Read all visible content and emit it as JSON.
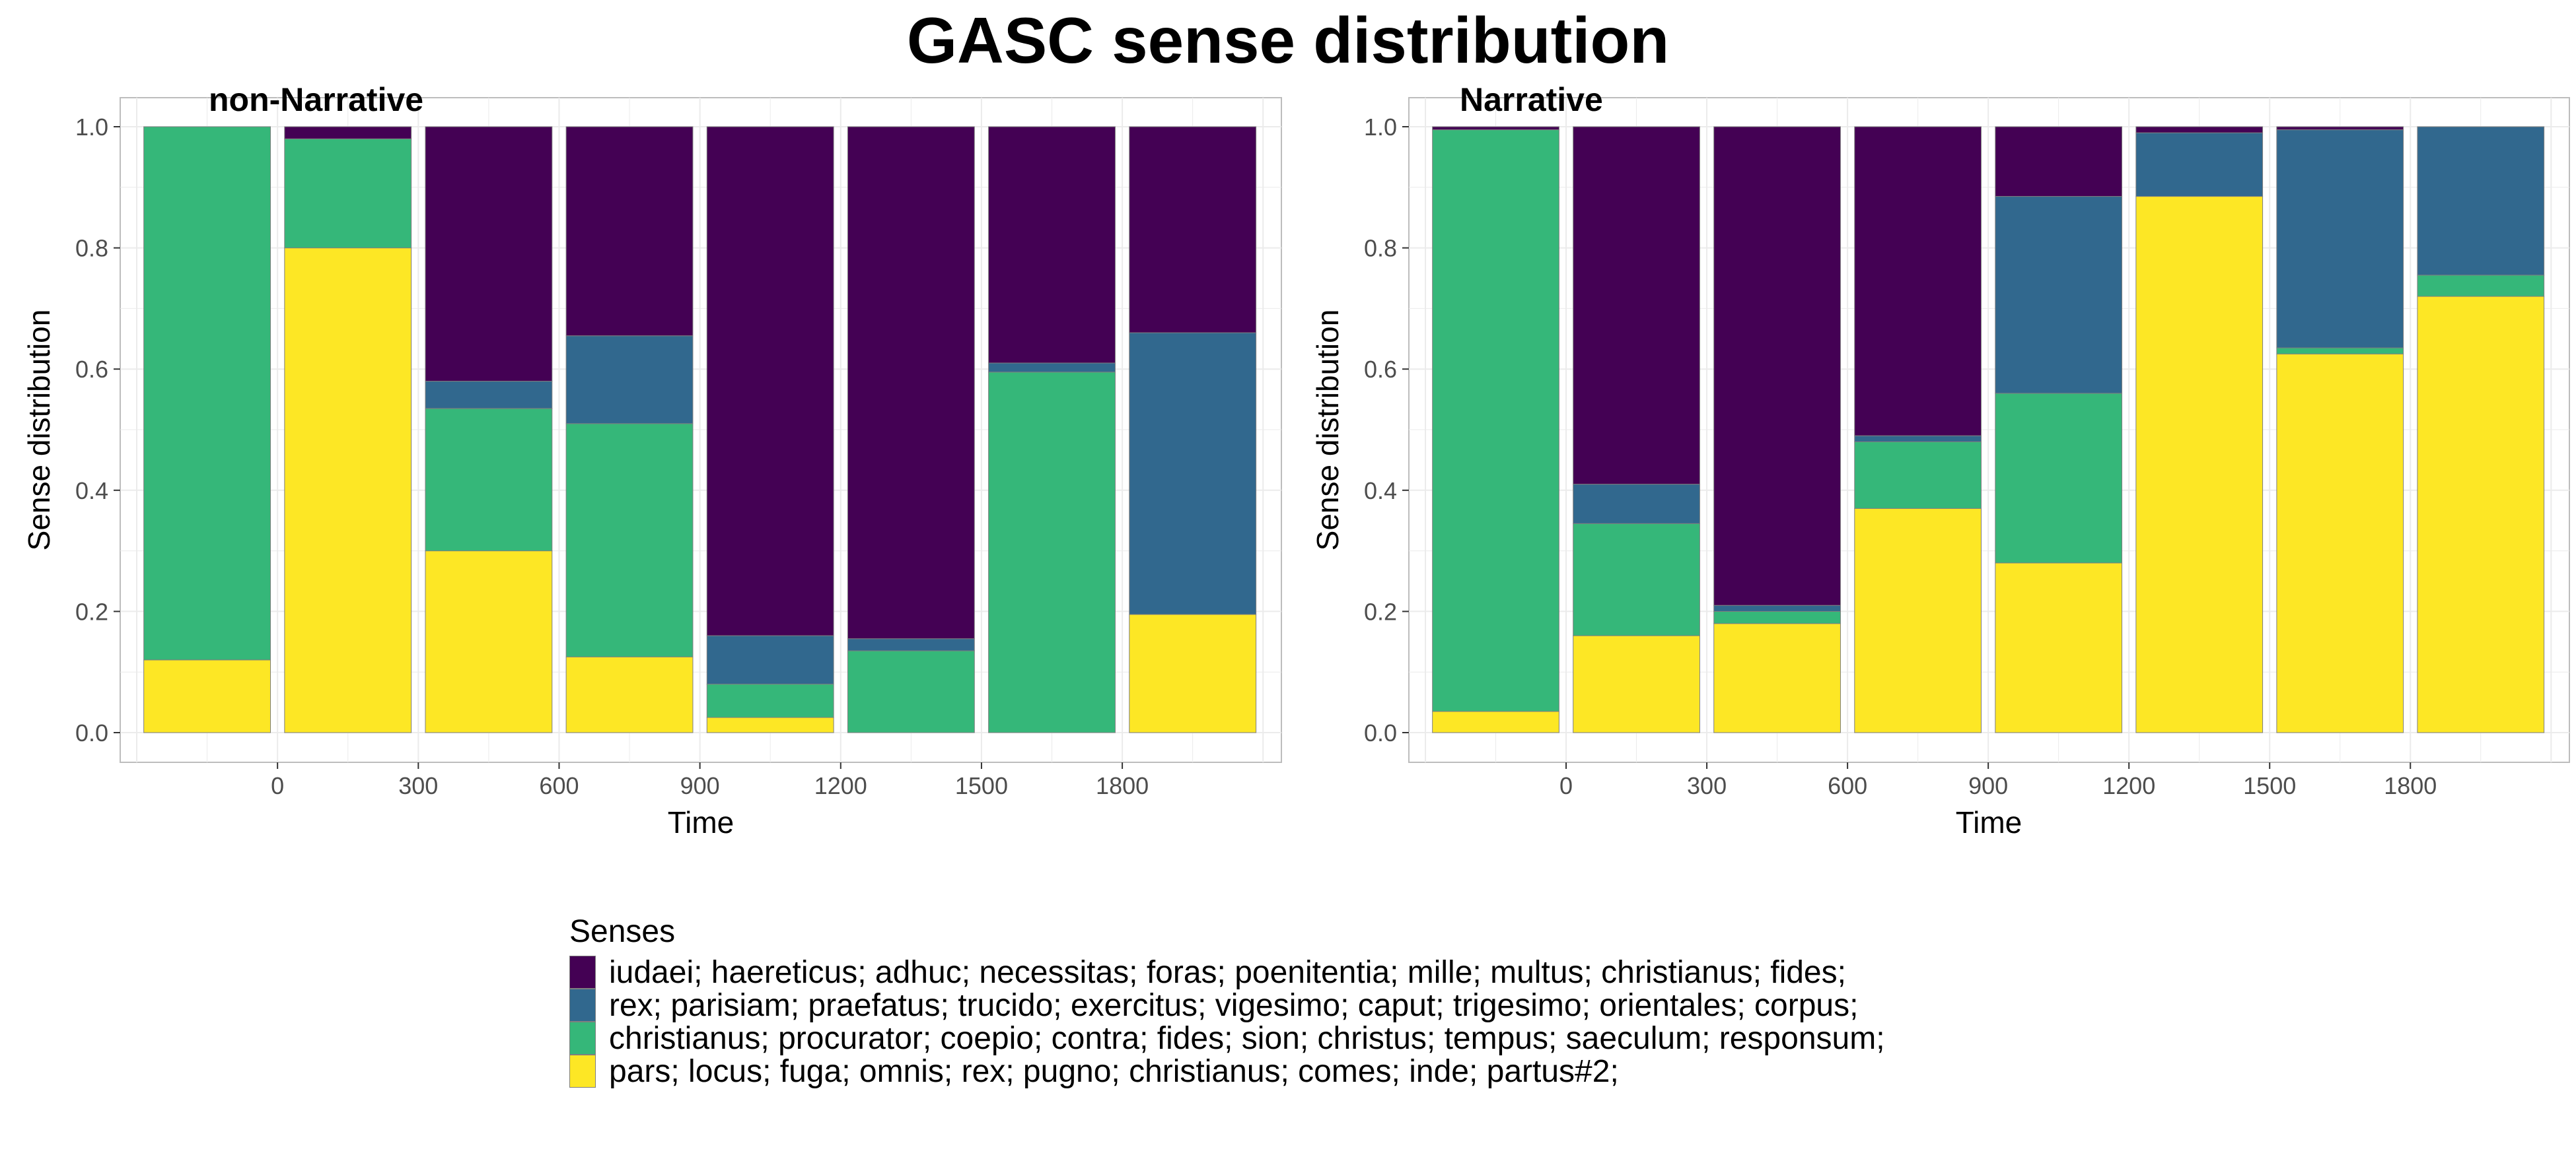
{
  "title": "GASC sense distribution",
  "colors": {
    "sense_1": "#440154",
    "sense_2": "#31688E",
    "sense_3": "#35B779",
    "sense_4": "#FDE725",
    "panel_border": "#BDBDBD",
    "grid": "#EBEBEB"
  },
  "legend": {
    "title": "Senses",
    "placement": "bottom",
    "items": [
      {
        "key": "sense_1",
        "label": "iudaei; haereticus; adhuc; necessitas; foras; poenitentia; mille; multus; christianus; fides;"
      },
      {
        "key": "sense_2",
        "label": "rex; parisiam; praefatus; trucido; exercitus; vigesimo; caput; trigesimo; orientales; corpus;"
      },
      {
        "key": "sense_3",
        "label": "christianus; procurator; coepio; contra; fides; sion; christus; tempus; saeculum; responsum;"
      },
      {
        "key": "sense_4",
        "label": "pars; locus; fuga; omnis; rex; pugno; christianus; comes; inde; partus#2;"
      }
    ]
  },
  "chart_data": [
    {
      "type": "bar",
      "stacked": true,
      "title": "non-Narrative",
      "xlabel": "Time",
      "ylabel": "Sense distribution",
      "ylim": [
        0,
        1.0
      ],
      "yticks": [
        "0.0",
        "0.2",
        "0.4",
        "0.6",
        "0.8",
        "1.0"
      ],
      "xticks": [
        "0",
        "300",
        "600",
        "900",
        "1200",
        "1500",
        "1800"
      ],
      "xlim": [
        -300,
        2100
      ],
      "grid": true,
      "bar_centers": [
        -150,
        150,
        450,
        750,
        1050,
        1350,
        1650,
        1950
      ],
      "series": [
        {
          "key": "sense_4",
          "values": [
            0.12,
            0.8,
            0.3,
            0.125,
            0.025,
            0.0,
            0.0,
            0.195
          ]
        },
        {
          "key": "sense_3",
          "values": [
            0.88,
            0.18,
            0.235,
            0.385,
            0.055,
            0.135,
            0.595,
            0.0
          ]
        },
        {
          "key": "sense_2",
          "values": [
            0.0,
            0.0,
            0.045,
            0.145,
            0.08,
            0.02,
            0.015,
            0.465
          ]
        },
        {
          "key": "sense_1",
          "values": [
            0.0,
            0.02,
            0.42,
            0.345,
            0.84,
            0.845,
            0.39,
            0.34
          ]
        }
      ]
    },
    {
      "type": "bar",
      "stacked": true,
      "title": "Narrative",
      "xlabel": "Time",
      "ylabel": "Sense distribution",
      "ylim": [
        0,
        1.0
      ],
      "yticks": [
        "0.0",
        "0.2",
        "0.4",
        "0.6",
        "0.8",
        "1.0"
      ],
      "xticks": [
        "0",
        "300",
        "600",
        "900",
        "1200",
        "1500",
        "1800"
      ],
      "xlim": [
        -300,
        2100
      ],
      "grid": true,
      "bar_centers": [
        -150,
        150,
        450,
        750,
        1050,
        1350,
        1650,
        1950
      ],
      "series": [
        {
          "key": "sense_4",
          "values": [
            0.035,
            0.16,
            0.18,
            0.37,
            0.28,
            0.885,
            0.625,
            0.72
          ]
        },
        {
          "key": "sense_3",
          "values": [
            0.96,
            0.185,
            0.02,
            0.11,
            0.28,
            0.0,
            0.01,
            0.035
          ]
        },
        {
          "key": "sense_2",
          "values": [
            0.0,
            0.065,
            0.01,
            0.01,
            0.325,
            0.105,
            0.36,
            0.245
          ]
        },
        {
          "key": "sense_1",
          "values": [
            0.005,
            0.59,
            0.79,
            0.51,
            0.115,
            0.01,
            0.005,
            0.0
          ]
        }
      ]
    }
  ]
}
